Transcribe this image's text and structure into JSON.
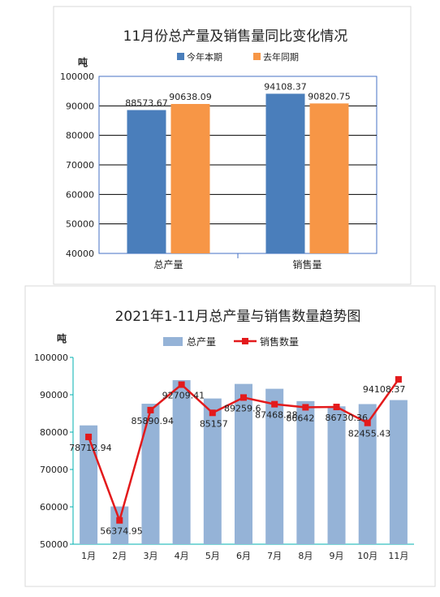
{
  "chart_data": [
    {
      "type": "bar",
      "title": "11月份总产量及销售量同比变化情况",
      "ylabel": "吨",
      "ylim": [
        40000,
        100000
      ],
      "yticks": [
        40000,
        50000,
        60000,
        70000,
        80000,
        90000,
        100000
      ],
      "categories": [
        "总产量",
        "销售量"
      ],
      "series": [
        {
          "name": "今年本期",
          "values": [
            88573.67,
            94108.37
          ],
          "labels": [
            "88573.67",
            "94108.37"
          ],
          "color": "#4a7ebb"
        },
        {
          "name": "去年同期",
          "values": [
            90638.09,
            90820.75
          ],
          "labels": [
            "90638.09",
            "90820.75"
          ],
          "color": "#f79646"
        }
      ],
      "grid": true,
      "legend": "top"
    },
    {
      "type": "bar+line",
      "title": "2021年1-11月总产量与销售数量趋势图",
      "ylabel": "吨",
      "ylim": [
        50000,
        100000
      ],
      "yticks": [
        50000,
        60000,
        70000,
        80000,
        90000,
        100000
      ],
      "categories": [
        "1月",
        "2月",
        "3月",
        "4月",
        "5月",
        "6月",
        "7月",
        "8月",
        "9月",
        "10月",
        "11月"
      ],
      "series": [
        {
          "name": "总产量",
          "type": "bar",
          "color": "#95b3d7",
          "values": [
            81800,
            60100,
            87600,
            93900,
            89000,
            92900,
            91600,
            88300,
            86900,
            87500,
            88573.67
          ]
        },
        {
          "name": "销售数量",
          "type": "line",
          "color": "#e31a1c",
          "values": [
            78712.94,
            56374.95,
            85890.94,
            92709.41,
            85157,
            89259.6,
            87468.28,
            86642,
            86730.36,
            82455.43,
            94108.37
          ],
          "labels": [
            "78712.94",
            "56374.95",
            "85890.94",
            "92709.41",
            "85157",
            "89259.6",
            "87468.28",
            "86642",
            "86730.36",
            "82455.43",
            "94108.37"
          ]
        }
      ],
      "grid": false,
      "legend": "top"
    }
  ]
}
